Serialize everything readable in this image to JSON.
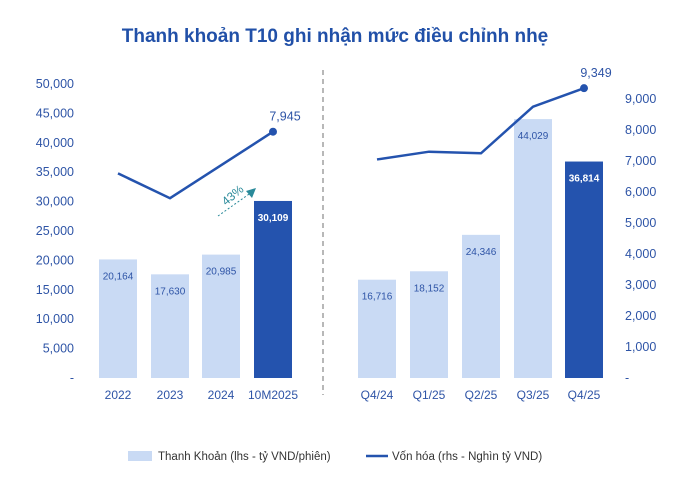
{
  "chart_data": [
    {
      "type": "bar+line",
      "title": "Thanh khoản T10 ghi nhận mức điều chỉnh nhẹ",
      "categories": [
        "2022",
        "2023",
        "2024",
        "10M2025"
      ],
      "bar_series": {
        "name": "Thanh Khoản (lhs - tỷ VND/phiên)",
        "values": [
          20164,
          17630,
          20985,
          30109
        ],
        "highlight_last": true
      },
      "line_series": {
        "name": "Vốn hóa (rhs - Nghìn tỷ VND)",
        "values": [
          6600,
          5800,
          6900,
          7945
        ],
        "end_label": "7,945"
      },
      "annotation": "43%",
      "ylim_left": [
        0,
        50000
      ],
      "yticks_left": [
        "-",
        "5,000",
        "10,000",
        "15,000",
        "20,000",
        "25,000",
        "30,000",
        "35,000",
        "40,000",
        "45,000",
        "50,000"
      ],
      "ylim_right": [
        0,
        9000
      ]
    },
    {
      "type": "bar+line",
      "categories": [
        "Q4/24",
        "Q1/25",
        "Q2/25",
        "Q3/25",
        "Q4/25"
      ],
      "bar_series": {
        "name": "Thanh Khoản (lhs - tỷ VND/phiên)",
        "values": [
          16716,
          18152,
          24346,
          44029,
          36814
        ],
        "highlight_last": true
      },
      "line_series": {
        "name": "Vốn hóa (rhs - Nghìn tỷ VND)",
        "values": [
          7050,
          7300,
          7250,
          8750,
          9349
        ],
        "end_label": "9,349"
      },
      "ylim_left": [
        0,
        50000
      ],
      "ylim_right": [
        0,
        9000
      ],
      "yticks_right": [
        "-",
        "1,000",
        "2,000",
        "3,000",
        "4,000",
        "5,000",
        "6,000",
        "7,000",
        "8,000",
        "9,000"
      ]
    }
  ],
  "legend": {
    "position": "bottom",
    "bar_label": "Thanh Khoản (lhs - tỷ VND/phiên)",
    "line_label": "Vốn hóa (rhs - Nghìn tỷ VND)"
  },
  "colors": {
    "bar": "#c9daf4",
    "bar_highlight": "#2453ae",
    "line": "#2453ae",
    "text": "#2e54a6",
    "annotation": "#2a8a9a"
  }
}
